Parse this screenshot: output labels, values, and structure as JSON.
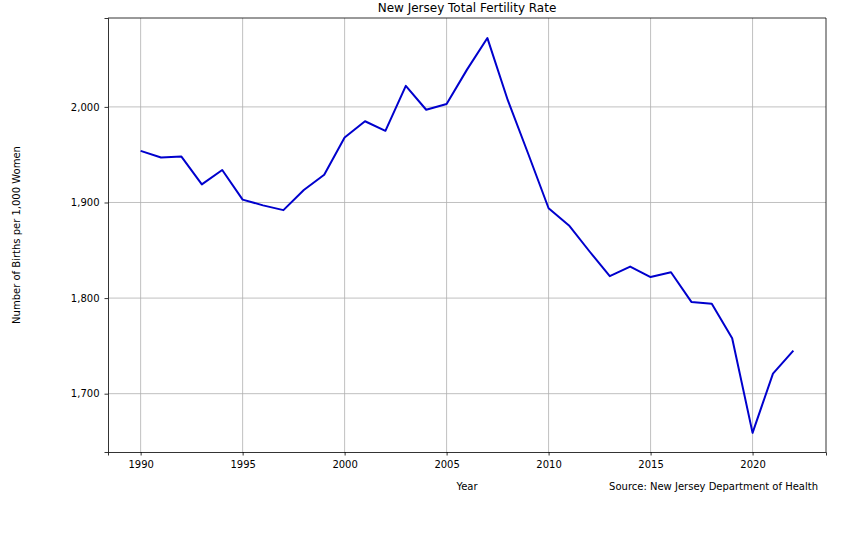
{
  "chart_data": {
    "type": "line",
    "title": "New Jersey Total Fertility Rate",
    "x_label": "Year",
    "y_label": "Number of Births per 1,000 Women",
    "annotations": [
      "Source: New Jersey Department of Health"
    ],
    "x": [
      1990,
      1991,
      1992,
      1993,
      1994,
      1995,
      1996,
      1997,
      1998,
      1999,
      2000,
      2001,
      2002,
      2003,
      2004,
      2005,
      2006,
      2007,
      2008,
      2009,
      2010,
      2011,
      2012,
      2013,
      2014,
      2015,
      2016,
      2017,
      2018,
      2019,
      2020,
      2021,
      2022
    ],
    "values": [
      1954,
      1947,
      1948,
      1919,
      1934,
      1903,
      1897,
      1892,
      1913,
      1929,
      1968,
      1985,
      1975,
      2022,
      1997,
      2003,
      2039,
      2072,
      2007,
      1951,
      1894,
      1876,
      1849,
      1823,
      1833,
      1822,
      1827,
      1796,
      1794,
      1758,
      1659,
      1721,
      1745
    ],
    "color": "#0000cd",
    "xlim": [
      1988.4,
      2023.6
    ],
    "xticks": [
      1990,
      1995,
      2000,
      2005,
      2010,
      2015,
      2020
    ],
    "ylim": [
      1639,
      2093
    ],
    "yticks": [
      {
        "value": 1700,
        "label": "1,700"
      },
      {
        "value": 1800,
        "label": "1,800"
      },
      {
        "value": 1900,
        "label": "1,900"
      },
      {
        "value": 2000,
        "label": "2,000"
      }
    ],
    "grid": true
  }
}
